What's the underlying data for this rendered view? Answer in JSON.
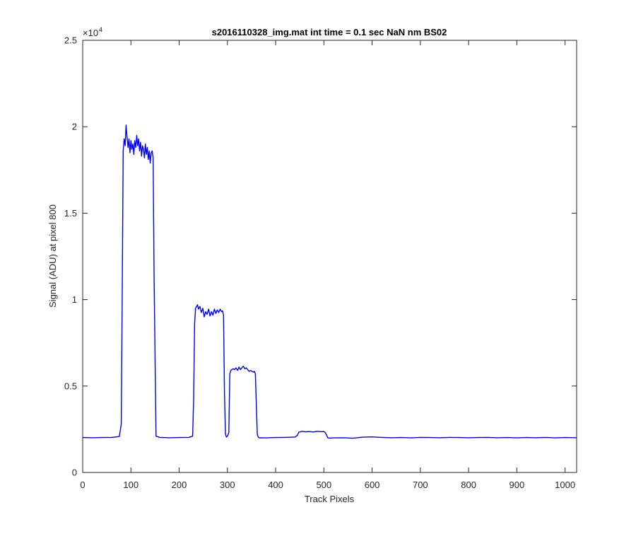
{
  "chart_data": {
    "type": "line",
    "title": "s2016110328_img.mat int time = 0.1 sec  NaN nm BS02",
    "xlabel": "Track Pixels",
    "ylabel": "Signal (ADU) at pixel 800",
    "xlim": [
      0,
      1024
    ],
    "ylim": [
      0,
      25000
    ],
    "x_ticks": [
      0,
      100,
      200,
      300,
      400,
      500,
      600,
      700,
      800,
      900,
      1000
    ],
    "x_tick_labels": [
      "0",
      "100",
      "200",
      "300",
      "400",
      "500",
      "600",
      "700",
      "800",
      "900",
      "1000"
    ],
    "y_ticks": [
      0,
      5000,
      10000,
      15000,
      20000,
      25000
    ],
    "y_tick_labels": [
      "0",
      "0.5",
      "1",
      "1.5",
      "2",
      "2.5"
    ],
    "y_exponent_base": "×10",
    "y_exponent_power": "4",
    "grid": false,
    "line_color": "#0000ff",
    "series": [
      {
        "x": [
          0,
          20,
          40,
          60,
          76,
          80,
          82,
          84,
          86,
          88,
          90,
          92,
          94,
          96,
          98,
          100,
          102,
          104,
          106,
          108,
          110,
          112,
          114,
          116,
          118,
          120,
          122,
          124,
          126,
          128,
          130,
          132,
          134,
          136,
          138,
          140,
          142,
          144,
          146,
          148,
          152,
          160,
          180,
          200,
          220,
          228,
          230,
          232,
          234,
          236,
          238,
          240,
          243,
          246,
          249,
          252,
          255,
          258,
          261,
          264,
          267,
          270,
          273,
          276,
          279,
          282,
          285,
          288,
          290,
          292,
          294,
          296,
          298,
          300,
          303,
          305,
          307,
          309,
          312,
          315,
          318,
          321,
          324,
          327,
          330,
          333,
          336,
          339,
          342,
          345,
          348,
          351,
          354,
          356,
          358,
          360,
          362,
          364,
          366,
          370,
          380,
          400,
          420,
          440,
          445,
          448,
          455,
          462,
          470,
          478,
          486,
          494,
          500,
          503,
          506,
          508,
          512,
          520,
          540,
          560,
          580,
          600,
          620,
          640,
          660,
          680,
          700,
          720,
          740,
          760,
          780,
          800,
          820,
          840,
          860,
          880,
          900,
          920,
          940,
          960,
          980,
          1000,
          1024
        ],
        "y": [
          2020,
          2010,
          2020,
          2030,
          2080,
          2800,
          10500,
          18600,
          19300,
          18900,
          20100,
          19400,
          18800,
          19300,
          18500,
          19200,
          18700,
          19000,
          18400,
          19200,
          18800,
          19500,
          18900,
          19300,
          18600,
          19100,
          18300,
          18900,
          18700,
          18200,
          19000,
          18400,
          18800,
          18100,
          18600,
          17900,
          18500,
          18600,
          18200,
          11500,
          2100,
          2030,
          2010,
          2020,
          2030,
          2100,
          4200,
          8600,
          9500,
          9600,
          9700,
          9450,
          9600,
          9250,
          9500,
          9000,
          9300,
          9150,
          9450,
          9050,
          9300,
          9100,
          9450,
          9200,
          9400,
          9250,
          9450,
          9300,
          9350,
          9100,
          4500,
          2200,
          2050,
          2100,
          2300,
          5700,
          5900,
          5950,
          6000,
          5950,
          6050,
          5900,
          6100,
          5950,
          6050,
          6150,
          6000,
          6050,
          5950,
          5850,
          5900,
          5850,
          5800,
          5850,
          5700,
          4000,
          2200,
          2050,
          2000,
          2010,
          2000,
          2020,
          2030,
          2050,
          2150,
          2330,
          2380,
          2350,
          2370,
          2340,
          2380,
          2360,
          2370,
          2300,
          2150,
          2000,
          1990,
          2000,
          2010,
          1980,
          2040,
          2060,
          2030,
          2010,
          2020,
          2000,
          2030,
          2020,
          2010,
          2030,
          2020,
          2010,
          2020,
          2030,
          2010,
          2020,
          2000,
          2020,
          2010,
          2030,
          2000,
          2020,
          2010
        ]
      }
    ]
  }
}
